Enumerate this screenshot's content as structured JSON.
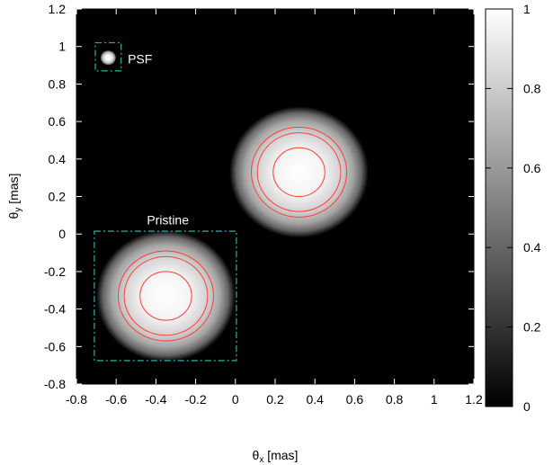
{
  "chart_data": {
    "type": "heatmap",
    "title": "",
    "xlabel": "θx [mas]",
    "ylabel": "θy [mas]",
    "xlim": [
      -0.8,
      1.2
    ],
    "ylim": [
      -0.8,
      1.2
    ],
    "xticks": [
      "-0.8",
      "-0.6",
      "-0.4",
      "-0.2",
      "0",
      "0.2",
      "0.4",
      "0.6",
      "0.8",
      "1",
      "1.2"
    ],
    "yticks": [
      "-0.8",
      "-0.6",
      "-0.4",
      "-0.2",
      "0",
      "0.2",
      "0.4",
      "0.6",
      "0.8",
      "1",
      "1.2"
    ],
    "colorbar": {
      "range": [
        0,
        1
      ],
      "ticks": [
        "0",
        "0.2",
        "0.4",
        "0.6",
        "0.8",
        "1"
      ],
      "colormap": "gray"
    },
    "grid": false,
    "background_color": "#000000",
    "sources": [
      {
        "label": "Pristine",
        "center": [
          -0.35,
          -0.33
        ],
        "radius": 0.35,
        "peak": 1.0,
        "contour_radii": [
          0.13,
          0.21,
          0.24
        ]
      },
      {
        "label": "",
        "center": [
          0.32,
          0.33
        ],
        "radius": 0.35,
        "peak": 1.0,
        "contour_radii": [
          0.13,
          0.21,
          0.24
        ]
      },
      {
        "label": "PSF",
        "center": [
          -0.64,
          0.94
        ],
        "radius": 0.04,
        "peak": 1.0,
        "contour_radii": []
      }
    ],
    "boxes": [
      {
        "label": "PSF",
        "x": [
          -0.705,
          -0.575
        ],
        "y": [
          0.87,
          1.02
        ]
      },
      {
        "label": "Pristine",
        "x": [
          -0.71,
          0.005
        ],
        "y": [
          -0.675,
          0.015
        ]
      }
    ],
    "annotations": [
      {
        "text": "PSF",
        "x": -0.48,
        "y": 0.935
      },
      {
        "text": "Pristine",
        "x": -0.34,
        "y": 0.075
      }
    ],
    "colors": {
      "contour": "#ff3b3b",
      "box": "#2aa39a"
    }
  }
}
